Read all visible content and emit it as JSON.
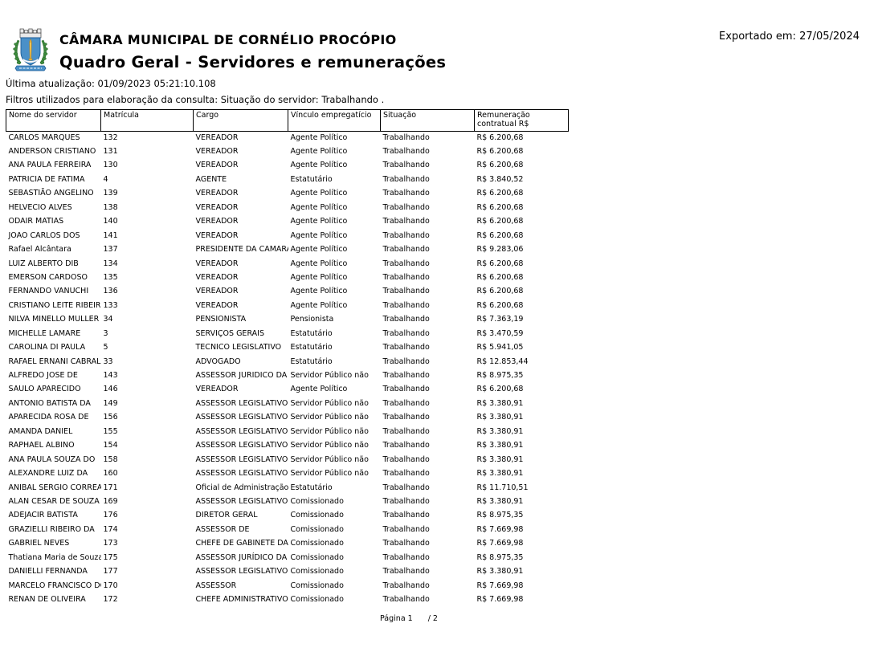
{
  "header": {
    "org_name": "CÂMARA MUNICIPAL DE CORNÉLIO PROCÓPIO",
    "report_title": "Quadro Geral - Servidores e remunerações",
    "exported_label": "Exportado em: 27/05/2024",
    "last_update": "Última atualização: 01/09/2023 05:21:10.108",
    "filters": "Filtros utilizados para elaboração da consulta: Situação do servidor: Trabalhando ."
  },
  "logo": {
    "name": "brasão Câmara Municipal de Cornélio Procópio",
    "shield_color": "#4a90c8",
    "obelisk_color": "#f2c24e",
    "laurel_color": "#3d8b3d",
    "crown_color": "#e9e9e9",
    "ribbon_color": "#4a90c8"
  },
  "table": {
    "columns": [
      "Nome do servidor",
      "Matrícula",
      "Cargo",
      "Vínculo empregatício",
      "Situação",
      "Remuneração contratual R$"
    ],
    "rows": [
      [
        "CARLOS MARQUES",
        "132",
        "VEREADOR",
        "Agente Político",
        "Trabalhando",
        "R$ 6.200,68"
      ],
      [
        "ANDERSON CRISTIANO",
        "131",
        "VEREADOR",
        "Agente Político",
        "Trabalhando",
        "R$ 6.200,68"
      ],
      [
        "ANA PAULA FERREIRA",
        "130",
        "VEREADOR",
        "Agente Político",
        "Trabalhando",
        "R$ 6.200,68"
      ],
      [
        "PATRICIA DE FATIMA",
        "4",
        "AGENTE",
        "Estatutário",
        "Trabalhando",
        "R$ 3.840,52"
      ],
      [
        "SEBASTIÃO ANGELINO",
        "139",
        "VEREADOR",
        "Agente Político",
        "Trabalhando",
        "R$ 6.200,68"
      ],
      [
        "HELVECIO ALVES",
        "138",
        "VEREADOR",
        "Agente Político",
        "Trabalhando",
        "R$ 6.200,68"
      ],
      [
        "ODAIR MATIAS",
        "140",
        "VEREADOR",
        "Agente Político",
        "Trabalhando",
        "R$ 6.200,68"
      ],
      [
        "JOAO CARLOS DOS",
        "141",
        "VEREADOR",
        "Agente Político",
        "Trabalhando",
        "R$ 6.200,68"
      ],
      [
        "Rafael Alcântara",
        "137",
        "PRESIDENTE DA CAMARA",
        "Agente Político",
        "Trabalhando",
        "R$ 9.283,06"
      ],
      [
        "LUIZ ALBERTO DIB",
        "134",
        "VEREADOR",
        "Agente Político",
        "Trabalhando",
        "R$ 6.200,68"
      ],
      [
        "EMERSON CARDOSO",
        "135",
        "VEREADOR",
        "Agente Político",
        "Trabalhando",
        "R$ 6.200,68"
      ],
      [
        "FERNANDO VANUCHI",
        "136",
        "VEREADOR",
        "Agente Político",
        "Trabalhando",
        "R$ 6.200,68"
      ],
      [
        "CRISTIANO LEITE RIBEIRO",
        "133",
        "VEREADOR",
        "Agente Político",
        "Trabalhando",
        "R$ 6.200,68"
      ],
      [
        "NILVA MINELLO MULLER",
        "34",
        "PENSIONISTA",
        "Pensionista",
        "Trabalhando",
        "R$ 7.363,19"
      ],
      [
        "MICHELLE LAMARE",
        "3",
        "SERVIÇOS GERAIS",
        "Estatutário",
        "Trabalhando",
        "R$ 3.470,59"
      ],
      [
        "CAROLINA DI PAULA",
        "5",
        "TECNICO LEGISLATIVO",
        "Estatutário",
        "Trabalhando",
        "R$ 5.941,05"
      ],
      [
        "RAFAEL ERNANI CABRAL",
        "33",
        "ADVOGADO",
        "Estatutário",
        "Trabalhando",
        "R$ 12.853,44"
      ],
      [
        "ALFREDO JOSE DE",
        "143",
        "ASSESSOR JURIDICO DA",
        "Servidor Público não",
        "Trabalhando",
        "R$ 8.975,35"
      ],
      [
        "SAULO APARECIDO",
        "146",
        "VEREADOR",
        "Agente Político",
        "Trabalhando",
        "R$ 6.200,68"
      ],
      [
        "ANTONIO BATISTA DA",
        "149",
        "ASSESSOR LEGISLATIVO",
        "Servidor Público não",
        "Trabalhando",
        "R$ 3.380,91"
      ],
      [
        "APARECIDA ROSA DE",
        "156",
        "ASSESSOR LEGISLATIVO",
        "Servidor Público não",
        "Trabalhando",
        "R$ 3.380,91"
      ],
      [
        "AMANDA DANIEL",
        "155",
        "ASSESSOR LEGISLATIVO",
        "Servidor Público não",
        "Trabalhando",
        "R$ 3.380,91"
      ],
      [
        "RAPHAEL ALBINO",
        "154",
        "ASSESSOR LEGISLATIVO",
        "Servidor Público não",
        "Trabalhando",
        "R$ 3.380,91"
      ],
      [
        "ANA PAULA SOUZA DO",
        "158",
        "ASSESSOR LEGISLATIVO",
        "Servidor Público não",
        "Trabalhando",
        "R$ 3.380,91"
      ],
      [
        "ALEXANDRE LUIZ DA",
        "160",
        "ASSESSOR LEGISLATIVO",
        "Servidor Público não",
        "Trabalhando",
        "R$ 3.380,91"
      ],
      [
        "ANIBAL SERGIO CORREA",
        "171",
        "Oficial de Administração",
        "Estatutário",
        "Trabalhando",
        "R$ 11.710,51"
      ],
      [
        "ALAN CESAR DE SOUZA",
        "169",
        "ASSESSOR LEGISLATIVO",
        "Comissionado",
        "Trabalhando",
        "R$ 3.380,91"
      ],
      [
        "ADEJACIR BATISTA",
        "176",
        "DIRETOR GERAL",
        "Comissionado",
        "Trabalhando",
        "R$ 8.975,35"
      ],
      [
        "GRAZIELLI RIBEIRO DA",
        "174",
        "ASSESSOR DE",
        "Comissionado",
        "Trabalhando",
        "R$ 7.669,98"
      ],
      [
        "GABRIEL NEVES",
        "173",
        "CHEFE DE GABINETE DA",
        "Comissionado",
        "Trabalhando",
        "R$ 7.669,98"
      ],
      [
        "Thatiana Maria de Souza",
        "175",
        "ASSESSOR JURÍDICO DA",
        "Comissionado",
        "Trabalhando",
        "R$ 8.975,35"
      ],
      [
        "DANIELLI FERNANDA",
        "177",
        "ASSESSOR LEGISLATIVO",
        "Comissionado",
        "Trabalhando",
        "R$ 3.380,91"
      ],
      [
        "MARCELO FRANCISCO DO",
        "170",
        "ASSESSOR",
        "Comissionado",
        "Trabalhando",
        "R$ 7.669,98"
      ],
      [
        "RENAN DE OLIVEIRA",
        "172",
        "CHEFE ADMINISTRATIVO",
        "Comissionado",
        "Trabalhando",
        "R$ 7.669,98"
      ]
    ]
  },
  "footer": {
    "page_label": "Página 1",
    "page_total": "/ 2"
  }
}
